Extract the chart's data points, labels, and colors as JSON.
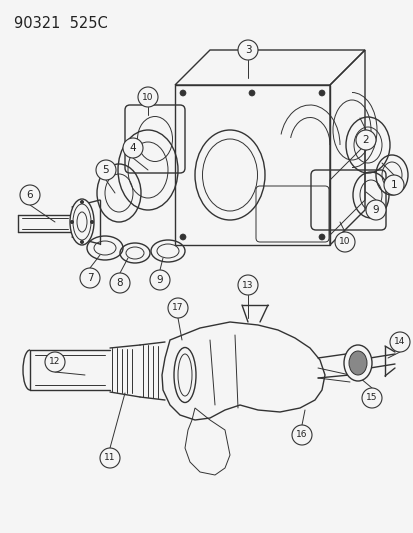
{
  "title": "90321  525C",
  "bg_color": "#f5f5f5",
  "line_color": "#333333",
  "label_color": "#222222",
  "title_fontsize": 10.5,
  "label_fontsize": 7.5,
  "figsize": [
    4.14,
    5.33
  ],
  "dpi": 100
}
